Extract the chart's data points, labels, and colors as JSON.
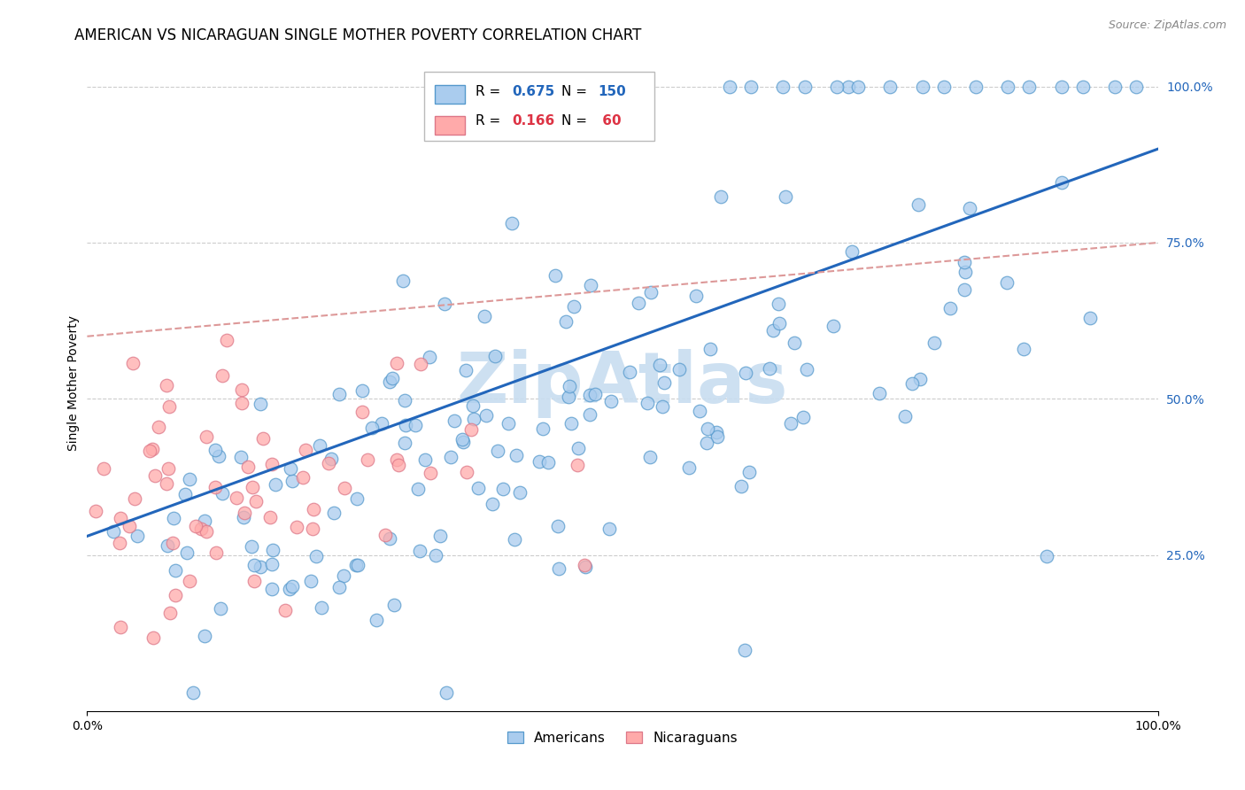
{
  "title": "AMERICAN VS NICARAGUAN SINGLE MOTHER POVERTY CORRELATION CHART",
  "source": "Source: ZipAtlas.com",
  "ylabel": "Single Mother Poverty",
  "xlim": [
    0,
    1
  ],
  "ylim": [
    0,
    1.05
  ],
  "xtick_labels": [
    "0.0%",
    "100.0%"
  ],
  "ytick_labels_right": [
    "100.0%",
    "75.0%",
    "50.0%",
    "25.0%"
  ],
  "ytick_positions_right": [
    1.0,
    0.75,
    0.5,
    0.25
  ],
  "american_R": 0.675,
  "american_N": 150,
  "nicaraguan_R": 0.166,
  "nicaraguan_N": 60,
  "american_color": "#aaccee",
  "american_edge_color": "#5599cc",
  "nicaraguan_color": "#ffaaaa",
  "nicaraguan_edge_color": "#dd7788",
  "american_line_color": "#2266bb",
  "nicaraguan_line_color": "#dd9999",
  "grid_color": "#cccccc",
  "background_color": "#ffffff",
  "watermark_text": "ZipAtlas",
  "watermark_color": "#c8ddf0",
  "legend_R_color_american": "#2266bb",
  "legend_R_color_nicaraguan": "#dd3344",
  "legend_N_color_american": "#2266bb",
  "legend_N_color_nicaraguan": "#dd3344",
  "title_fontsize": 12,
  "label_fontsize": 10,
  "tick_fontsize": 10,
  "source_fontsize": 9
}
